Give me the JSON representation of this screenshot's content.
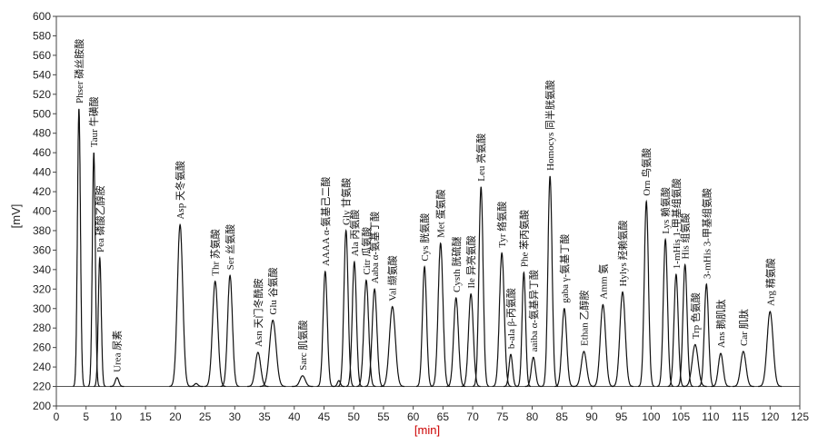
{
  "chart_data": {
    "type": "line",
    "title": "",
    "xlabel": "[min]",
    "ylabel": "[mV]",
    "xlim": [
      0,
      125
    ],
    "ylim": [
      200,
      600
    ],
    "xticks": [
      0,
      5,
      10,
      15,
      20,
      25,
      30,
      35,
      40,
      45,
      50,
      55,
      60,
      65,
      70,
      75,
      80,
      85,
      90,
      95,
      100,
      105,
      110,
      115,
      120,
      125
    ],
    "yticks": [
      200,
      220,
      240,
      260,
      280,
      300,
      320,
      340,
      360,
      380,
      400,
      420,
      440,
      460,
      480,
      500,
      520,
      540,
      560,
      580,
      600
    ],
    "baseline": 220,
    "grid": false,
    "peaks": [
      {
        "t": 3.8,
        "h": 505,
        "w": 0.25,
        "label": "Phser 磷丝胺酸"
      },
      {
        "t": 6.3,
        "h": 460,
        "w": 0.25,
        "label": "Taur 牛磺酸"
      },
      {
        "t": 7.3,
        "h": 352,
        "w": 0.25,
        "label": "Pea 磷酸乙醇胺"
      },
      {
        "t": 10.2,
        "h": 229,
        "w": 0.3,
        "label": "Urea 尿素"
      },
      {
        "t": 20.8,
        "h": 386,
        "w": 0.45,
        "label": "Asp 天冬氨酸"
      },
      {
        "t": 23.5,
        "h": 223,
        "w": 0.3,
        "label": ""
      },
      {
        "t": 26.7,
        "h": 328,
        "w": 0.45,
        "label": "Thr 苏氨酸"
      },
      {
        "t": 29.2,
        "h": 334,
        "w": 0.4,
        "label": "Ser 丝氨酸"
      },
      {
        "t": 33.9,
        "h": 255,
        "w": 0.45,
        "label": "Asn 天门冬酰胺"
      },
      {
        "t": 36.4,
        "h": 288,
        "w": 0.55,
        "label": "Glu 谷氨酸"
      },
      {
        "t": 41.4,
        "h": 231,
        "w": 0.45,
        "label": "Sarc 肌氨酸"
      },
      {
        "t": 45.2,
        "h": 338,
        "w": 0.35,
        "label": "AAAA α-氨基己二酸"
      },
      {
        "t": 47.5,
        "h": 226,
        "w": 0.25,
        "label": ""
      },
      {
        "t": 48.7,
        "h": 380,
        "w": 0.35,
        "label": "Gly 甘氨酸"
      },
      {
        "t": 50.1,
        "h": 348,
        "w": 0.35,
        "label": "Ala 丙氨酸"
      },
      {
        "t": 52.1,
        "h": 329,
        "w": 0.4,
        "label": "Citr 瓜氨酸"
      },
      {
        "t": 53.5,
        "h": 320,
        "w": 0.4,
        "label": "Aaba α-氨基丁酸"
      },
      {
        "t": 56.5,
        "h": 302,
        "w": 0.5,
        "label": "Val 缬氨酸"
      },
      {
        "t": 61.9,
        "h": 343,
        "w": 0.35,
        "label": "Cys 胱氨酸"
      },
      {
        "t": 64.6,
        "h": 367,
        "w": 0.4,
        "label": "Met 蛋氨酸"
      },
      {
        "t": 67.2,
        "h": 311,
        "w": 0.4,
        "label": "Cysth 胱硫醚"
      },
      {
        "t": 69.7,
        "h": 315,
        "w": 0.4,
        "label": "Ile 异亮氨酸"
      },
      {
        "t": 71.4,
        "h": 425,
        "w": 0.35,
        "label": "Leu 亮氨酸"
      },
      {
        "t": 74.9,
        "h": 357,
        "w": 0.4,
        "label": "Tyr 络氨酸"
      },
      {
        "t": 76.4,
        "h": 253,
        "w": 0.3,
        "label": "b-ala β-丙氨酸"
      },
      {
        "t": 78.6,
        "h": 337,
        "w": 0.3,
        "label": "Phe 苯丙氨酸"
      },
      {
        "t": 80.2,
        "h": 250,
        "w": 0.35,
        "label": "aaiba α-氨基异丁酸"
      },
      {
        "t": 83.0,
        "h": 436,
        "w": 0.35,
        "label": "Homocys 同半胱氨酸"
      },
      {
        "t": 85.4,
        "h": 300,
        "w": 0.4,
        "label": "gaba γ-氨基丁酸"
      },
      {
        "t": 88.7,
        "h": 256,
        "w": 0.45,
        "label": "Ethan 乙醇胺"
      },
      {
        "t": 91.9,
        "h": 304,
        "w": 0.45,
        "label": "Amm 氨"
      },
      {
        "t": 95.2,
        "h": 317,
        "w": 0.45,
        "label": "Hylys 羟赖氨酸"
      },
      {
        "t": 99.2,
        "h": 410,
        "w": 0.35,
        "label": "Orn 鸟氨酸"
      },
      {
        "t": 102.4,
        "h": 371,
        "w": 0.35,
        "label": "Lys 赖氨酸"
      },
      {
        "t": 104.2,
        "h": 335,
        "w": 0.35,
        "label": "1-mHis 1-甲基组氨酸"
      },
      {
        "t": 105.7,
        "h": 345,
        "w": 0.35,
        "label": "His 组氨酸"
      },
      {
        "t": 107.4,
        "h": 263,
        "w": 0.5,
        "label": "Trp 色氨酸"
      },
      {
        "t": 109.3,
        "h": 325,
        "w": 0.35,
        "label": "3-mHis 3-甲基组氨酸"
      },
      {
        "t": 111.7,
        "h": 254,
        "w": 0.4,
        "label": "Ans 鹅肌肽"
      },
      {
        "t": 115.5,
        "h": 256,
        "w": 0.45,
        "label": "Car 肌肽"
      },
      {
        "t": 120.0,
        "h": 297,
        "w": 0.5,
        "label": "Arg 精氨酸"
      }
    ]
  }
}
